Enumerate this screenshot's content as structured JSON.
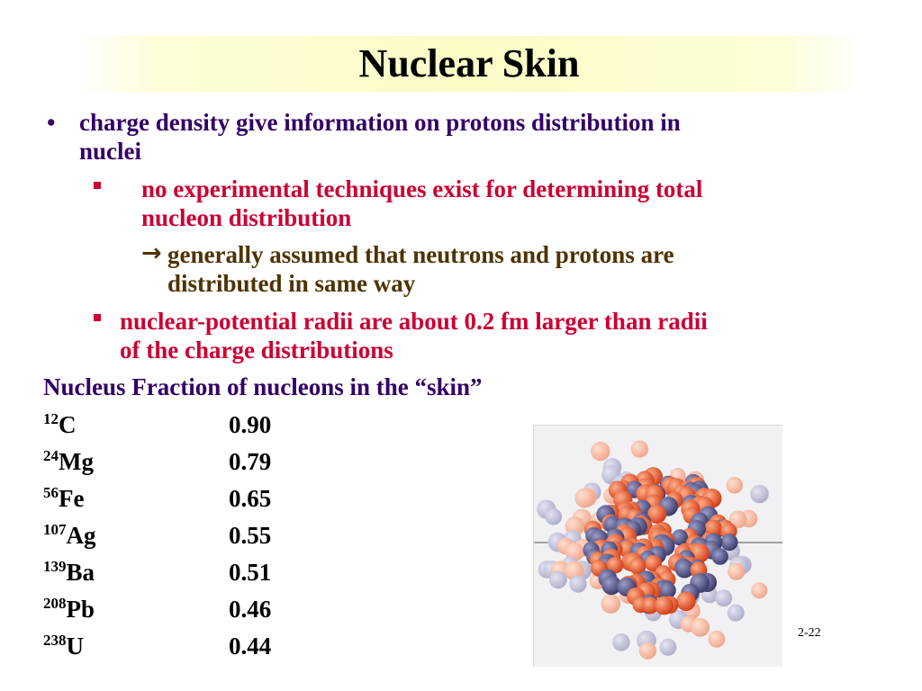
{
  "title": "Nuclear Skin",
  "bullets": {
    "b1_line1": "charge density give information on protons distribution in",
    "b1_line2": "nuclei",
    "b2_line1": "no experimental techniques exist for determining total",
    "b2_line2": "nucleon distribution",
    "b3_line1": "generally assumed that neutrons and protons are",
    "b3_line2": "distributed in same way",
    "b4_line1": "nuclear-potential radii are about 0.2 fm larger than radii",
    "b4_line2": "of the charge distributions",
    "bullet_char": "•",
    "arrow_char": "→"
  },
  "table": {
    "header": "Nucleus Fraction of nucleons in the “skin”",
    "rows": [
      {
        "mass": "12",
        "symbol": "C",
        "value": "0.90"
      },
      {
        "mass": "24",
        "symbol": "Mg",
        "value": "0.79"
      },
      {
        "mass": "56",
        "symbol": "Fe",
        "value": "0.65"
      },
      {
        "mass": "107",
        "symbol": "Ag",
        "value": "0.55"
      },
      {
        "mass": "139",
        "symbol": "Ba",
        "value": "0.51"
      },
      {
        "mass": "208",
        "symbol": "Pb",
        "value": "0.46"
      },
      {
        "mass": "238",
        "symbol": "U",
        "value": "0.44"
      }
    ]
  },
  "image": {
    "proton_color": "#e8542a",
    "neutron_color": "#5a5a8c"
  },
  "page_number": "2-22"
}
